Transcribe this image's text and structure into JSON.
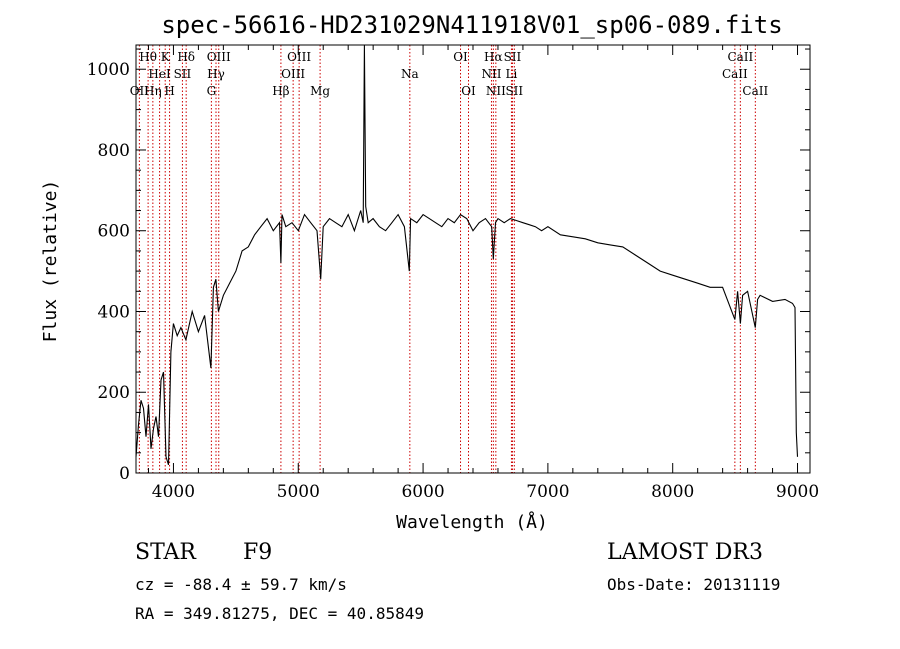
{
  "chart_data": {
    "type": "line",
    "title": "spec-56616-HD231029N411918V01_sp06-089.fits",
    "xlabel": "Wavelength (Å)",
    "ylabel": "Flux (relative)",
    "xlim": [
      3700,
      9100
    ],
    "ylim": [
      0,
      1060
    ],
    "x_ticks": [
      4000,
      5000,
      6000,
      7000,
      8000,
      9000
    ],
    "y_ticks": [
      0,
      200,
      400,
      600,
      800,
      1000
    ],
    "grid": false,
    "series": [
      {
        "x": [
          3700,
          3720,
          3740,
          3760,
          3780,
          3800,
          3820,
          3840,
          3860,
          3880,
          3900,
          3920,
          3940,
          3960,
          3980,
          4000,
          4030,
          4060,
          4100,
          4150,
          4200,
          4250,
          4300,
          4320,
          4340,
          4360,
          4400,
          4450,
          4500,
          4550,
          4600,
          4650,
          4700,
          4750,
          4800,
          4850,
          4861,
          4870,
          4900,
          4950,
          5000,
          5050,
          5100,
          5150,
          5180,
          5200,
          5250,
          5300,
          5350,
          5400,
          5450,
          5500,
          5520,
          5530,
          5540,
          5560,
          5600,
          5650,
          5700,
          5750,
          5800,
          5850,
          5890,
          5900,
          5950,
          6000,
          6050,
          6100,
          6150,
          6200,
          6250,
          6300,
          6350,
          6400,
          6450,
          6500,
          6550,
          6563,
          6580,
          6600,
          6650,
          6700,
          6750,
          6800,
          6850,
          6900,
          6950,
          7000,
          7100,
          7200,
          7300,
          7400,
          7500,
          7600,
          7700,
          7800,
          7900,
          8000,
          8100,
          8200,
          8300,
          8400,
          8498,
          8520,
          8542,
          8560,
          8600,
          8662,
          8680,
          8700,
          8800,
          8900,
          8960,
          8980,
          8990,
          9000
        ],
        "y": [
          40,
          120,
          180,
          160,
          90,
          170,
          60,
          110,
          140,
          90,
          230,
          250,
          40,
          20,
          300,
          370,
          340,
          360,
          330,
          400,
          350,
          390,
          260,
          460,
          480,
          400,
          440,
          470,
          500,
          550,
          560,
          590,
          610,
          630,
          600,
          620,
          520,
          640,
          610,
          620,
          600,
          640,
          620,
          600,
          480,
          610,
          630,
          620,
          610,
          640,
          600,
          650,
          620,
          1060,
          660,
          620,
          630,
          610,
          600,
          620,
          640,
          610,
          500,
          630,
          620,
          640,
          630,
          620,
          610,
          630,
          620,
          640,
          630,
          600,
          620,
          630,
          610,
          530,
          620,
          630,
          620,
          630,
          625,
          620,
          615,
          610,
          600,
          610,
          590,
          585,
          580,
          570,
          565,
          560,
          540,
          520,
          500,
          490,
          480,
          470,
          460,
          460,
          380,
          450,
          370,
          440,
          450,
          360,
          430,
          440,
          425,
          430,
          420,
          410,
          100,
          40
        ]
      }
    ],
    "lines": [
      {
        "label": "OII",
        "wl": 3727,
        "row": 3
      },
      {
        "label": "Hθ",
        "wl": 3797,
        "row": 1
      },
      {
        "label": "Hη",
        "wl": 3835,
        "row": 3
      },
      {
        "label": "HeI",
        "wl": 3889,
        "row": 2
      },
      {
        "label": "K",
        "wl": 3934,
        "row": 1
      },
      {
        "label": "H",
        "wl": 3969,
        "row": 3
      },
      {
        "label": "SII",
        "wl": 4072,
        "row": 2
      },
      {
        "label": "Hδ",
        "wl": 4102,
        "row": 1
      },
      {
        "label": "G",
        "wl": 4304,
        "row": 3
      },
      {
        "label": "Hγ",
        "wl": 4341,
        "row": 2
      },
      {
        "label": "OIII",
        "wl": 4363,
        "row": 1
      },
      {
        "label": "Hβ",
        "wl": 4861,
        "row": 3
      },
      {
        "label": "OIII",
        "wl": 4959,
        "row": 2
      },
      {
        "label": "OIII",
        "wl": 5007,
        "row": 1
      },
      {
        "label": "Mg",
        "wl": 5175,
        "row": 3
      },
      {
        "label": "Na",
        "wl": 5894,
        "row": 2
      },
      {
        "label": "OI",
        "wl": 6300,
        "row": 1
      },
      {
        "label": "OI",
        "wl": 6364,
        "row": 3
      },
      {
        "label": "NII",
        "wl": 6548,
        "row": 2
      },
      {
        "label": "Hα",
        "wl": 6563,
        "row": 1
      },
      {
        "label": "NII",
        "wl": 6583,
        "row": 3
      },
      {
        "label": "SII",
        "wl": 6716,
        "row": 1
      },
      {
        "label": "Li",
        "wl": 6708,
        "row": 2
      },
      {
        "label": "SII",
        "wl": 6731,
        "row": 3
      },
      {
        "label": "CaII",
        "wl": 8498,
        "row": 2
      },
      {
        "label": "CaII",
        "wl": 8542,
        "row": 1
      },
      {
        "label": "CaII",
        "wl": 8662,
        "row": 3
      }
    ],
    "colors": {
      "spectrum": "#000000",
      "lines": "#cc0000",
      "axis": "#000000"
    }
  },
  "info": {
    "obj_class": "STAR",
    "subclass": "F9",
    "survey": "LAMOST DR3",
    "cz": "cz = -88.4 ± 59.7 km/s",
    "obs_date": "Obs-Date: 20131119",
    "coords": "RA = 349.81275, DEC =  40.85849"
  }
}
